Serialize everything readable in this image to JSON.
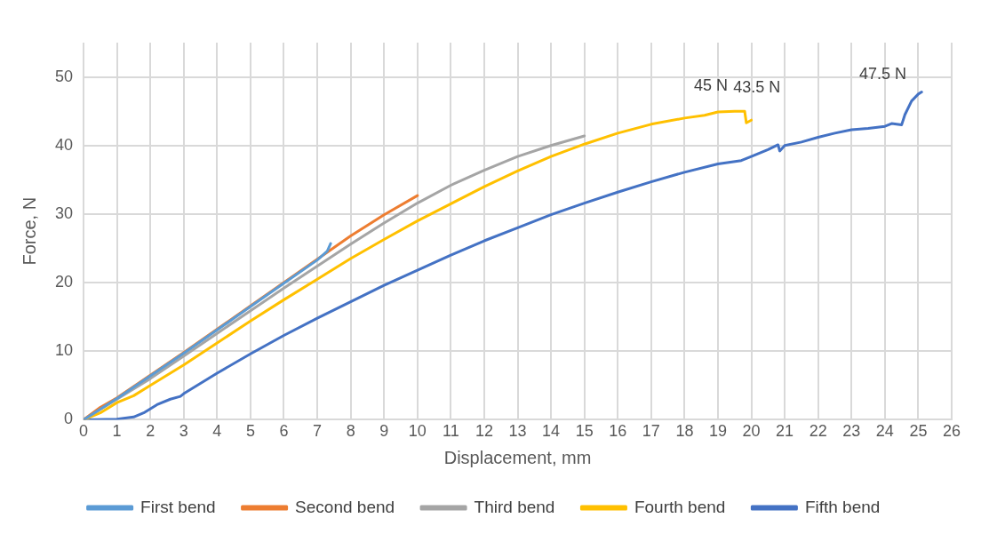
{
  "chart_data": {
    "type": "line",
    "xlabel": "Displacement, mm",
    "ylabel": "Force, N",
    "xlim": [
      0,
      26
    ],
    "xticks": [
      0,
      1,
      2,
      3,
      4,
      5,
      6,
      7,
      8,
      9,
      10,
      11,
      12,
      13,
      14,
      15,
      16,
      17,
      18,
      19,
      20,
      21,
      22,
      23,
      24,
      25,
      26
    ],
    "ylim": [
      0,
      55
    ],
    "yticks": [
      0,
      10,
      20,
      30,
      40,
      50
    ],
    "grid": true,
    "legend": "bottom",
    "marker": "none",
    "line_style": "solid",
    "annotations": [
      {
        "text": "45 N",
        "x": 19.8,
        "y": 45
      },
      {
        "text": "43.5 N",
        "x": 19.9,
        "y": 43.5
      },
      {
        "text": "47.5 N",
        "x": 25,
        "y": 47.5
      }
    ],
    "series": [
      {
        "name": "First bend",
        "color": "#5b9bd5",
        "x": [
          0,
          1,
          2,
          3,
          4,
          5,
          6,
          7,
          7.3,
          7.4
        ],
        "values": [
          0,
          3.1,
          6.4,
          9.7,
          13.1,
          16.5,
          19.9,
          23.3,
          24.6,
          25.7
        ]
      },
      {
        "name": "Second bend",
        "color": "#ed7d31",
        "x": [
          0,
          0.5,
          1,
          2,
          3,
          4,
          5,
          6,
          7,
          8,
          9,
          10
        ],
        "values": [
          0,
          1.8,
          3.2,
          6.5,
          9.8,
          13.2,
          16.6,
          20,
          23.4,
          26.8,
          29.9,
          32.7
        ]
      },
      {
        "name": "Third bend",
        "color": "#a5a5a5",
        "x": [
          0,
          1,
          2,
          3,
          4,
          5,
          6,
          7,
          8,
          9,
          10,
          11,
          12,
          13,
          14,
          15
        ],
        "values": [
          0,
          3,
          6,
          9.3,
          12.6,
          15.9,
          19.2,
          22.4,
          25.6,
          28.7,
          31.6,
          34.2,
          36.4,
          38.4,
          40,
          41.4
        ]
      },
      {
        "name": "Fourth bend",
        "color": "#ffc000",
        "x": [
          0,
          0.5,
          1,
          1.5,
          2,
          3,
          4,
          5,
          6,
          7,
          8,
          9,
          10,
          11,
          12,
          13,
          14,
          15,
          16,
          17,
          18,
          18.6,
          19,
          19.5,
          19.8,
          19.85,
          20
        ],
        "values": [
          0,
          1,
          2.5,
          3.5,
          5,
          8,
          11.2,
          14.4,
          17.5,
          20.5,
          23.5,
          26.3,
          29,
          31.5,
          34,
          36.3,
          38.4,
          40.2,
          41.8,
          43.1,
          44,
          44.4,
          44.9,
          45,
          45,
          43.3,
          43.7
        ]
      },
      {
        "name": "Fifth bend",
        "color": "#4472c4",
        "x": [
          0,
          1,
          1.5,
          1.8,
          2.2,
          2.6,
          2.9,
          3,
          4,
          5,
          6,
          7,
          8,
          9,
          10,
          11,
          12,
          13,
          14,
          15,
          16,
          17,
          18,
          19,
          19.7,
          20,
          20.5,
          20.8,
          20.85,
          21,
          21.5,
          22,
          22.5,
          23,
          23.5,
          24,
          24.2,
          24.5,
          24.6,
          24.8,
          25,
          25.1
        ],
        "values": [
          0,
          0.1,
          0.4,
          1,
          2.2,
          3,
          3.4,
          3.8,
          6.8,
          9.6,
          12.3,
          14.8,
          17.2,
          19.6,
          21.8,
          24,
          26.1,
          28,
          29.9,
          31.6,
          33.2,
          34.7,
          36.1,
          37.3,
          37.8,
          38.4,
          39.4,
          40.1,
          39.2,
          40,
          40.5,
          41.2,
          41.8,
          42.3,
          42.5,
          42.8,
          43.2,
          43,
          44.5,
          46.5,
          47.5,
          47.8
        ]
      }
    ]
  }
}
